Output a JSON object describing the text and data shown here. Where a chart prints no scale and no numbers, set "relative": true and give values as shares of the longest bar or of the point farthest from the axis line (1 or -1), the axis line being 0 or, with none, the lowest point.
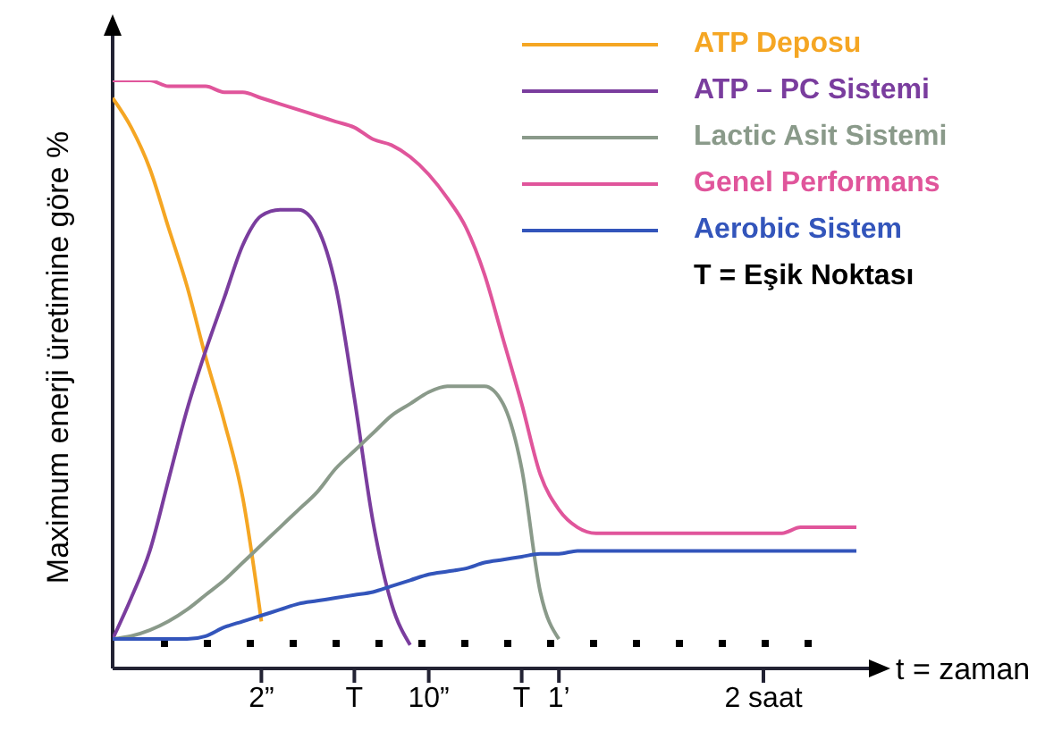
{
  "chart_data": {
    "type": "line",
    "relative": true,
    "xlabel": "t = zaman",
    "ylabel": "Maximum enerji üretimine göre %",
    "legend": "top right",
    "marker": "none",
    "annotations": [
      "T = Eşik Noktası"
    ],
    "categories": [
      null,
      null,
      null,
      null,
      null,
      null,
      null,
      null,
      "2”",
      null,
      null,
      null,
      null,
      "T",
      null,
      null,
      null,
      "10”",
      null,
      null,
      null,
      null,
      "T",
      null,
      "1’",
      null,
      null,
      null,
      null,
      null,
      null,
      null,
      null,
      null,
      null,
      "2 saat",
      null,
      null,
      null,
      null,
      null
    ],
    "series": [
      {
        "name": "ATP Deposu",
        "color": "#f5a623",
        "values": [
          0.97,
          0.92,
          0.85,
          0.75,
          0.65,
          0.53,
          0.42,
          0.29,
          0.08,
          null,
          null,
          null,
          null,
          null,
          null,
          null,
          null,
          null,
          null,
          null,
          null,
          null,
          null,
          null,
          null,
          null,
          null,
          null,
          null,
          null,
          null,
          null,
          null,
          null,
          null,
          null,
          null,
          null,
          null,
          null,
          null
        ]
      },
      {
        "name": "ATP – PC Sistemi",
        "color": "#7a3d9e",
        "values": [
          0.05,
          0.12,
          0.2,
          0.32,
          0.44,
          0.54,
          0.63,
          0.72,
          0.77,
          0.78,
          0.78,
          0.75,
          0.65,
          0.46,
          0.25,
          0.11,
          0.04,
          null,
          null,
          null,
          null,
          null,
          null,
          null,
          null,
          null,
          null,
          null,
          null,
          null,
          null,
          null,
          null,
          null,
          null,
          null,
          null,
          null,
          null,
          null,
          null
        ]
      },
      {
        "name": "Lactic Asit Sistemi",
        "color": "#8a9a8a",
        "values": [
          0.05,
          0.055,
          0.065,
          0.08,
          0.1,
          0.125,
          0.15,
          0.18,
          0.21,
          0.24,
          0.27,
          0.3,
          0.34,
          0.37,
          0.4,
          0.43,
          0.45,
          0.47,
          0.48,
          0.48,
          0.48,
          0.45,
          0.34,
          0.13,
          0.05,
          null,
          null,
          null,
          null,
          null,
          null,
          null,
          null,
          null,
          null,
          null,
          null,
          null,
          null,
          null,
          null
        ]
      },
      {
        "name": "Genel Performans",
        "color": "#e0559b",
        "values": [
          1,
          1,
          1,
          0.99,
          0.99,
          0.99,
          0.98,
          0.98,
          0.97,
          0.96,
          0.95,
          0.94,
          0.93,
          0.92,
          0.9,
          0.89,
          0.87,
          0.84,
          0.8,
          0.75,
          0.67,
          0.56,
          0.45,
          0.33,
          0.27,
          0.24,
          0.23,
          0.23,
          0.23,
          0.23,
          0.23,
          0.23,
          0.23,
          0.23,
          0.23,
          0.23,
          0.23,
          0.24,
          0.24,
          0.24,
          0.24
        ]
      },
      {
        "name": "Aerobic Sistem",
        "color": "#3355bb",
        "values": [
          0.05,
          0.05,
          0.05,
          0.05,
          0.05,
          0.055,
          0.07,
          0.08,
          0.09,
          0.1,
          0.11,
          0.115,
          0.12,
          0.125,
          0.13,
          0.14,
          0.15,
          0.16,
          0.165,
          0.17,
          0.18,
          0.185,
          0.19,
          0.195,
          0.195,
          0.2,
          0.2,
          0.2,
          0.2,
          0.2,
          0.2,
          0.2,
          0.2,
          0.2,
          0.2,
          0.2,
          0.2,
          0.2,
          0.2,
          0.2,
          0.2
        ]
      }
    ]
  }
}
